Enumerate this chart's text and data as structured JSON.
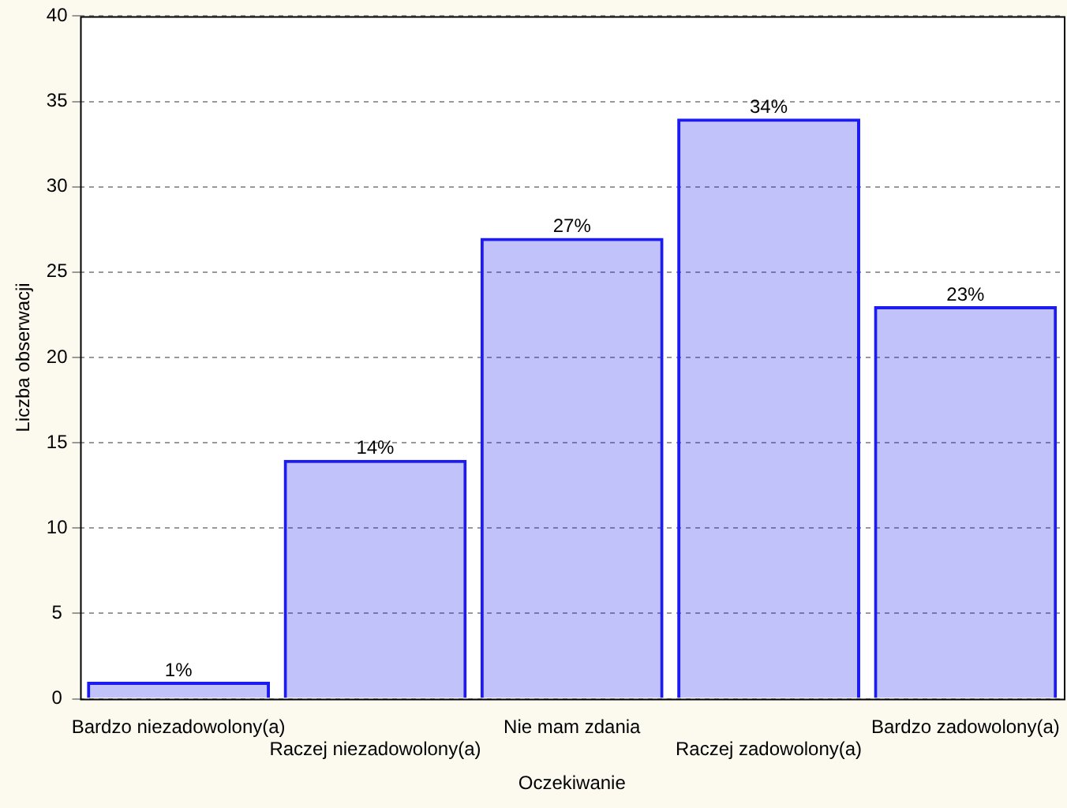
{
  "chart_data": {
    "type": "bar",
    "xlabel": "Oczekiwanie",
    "ylabel": "Liczba obserwacji",
    "categories": [
      "Bardzo niezadowolony(a)",
      "Raczej niezadowolony(a)",
      "Nie mam zdania",
      "Raczej zadowolony(a)",
      "Bardzo zadowolony(a)"
    ],
    "values": [
      1,
      14,
      27,
      34,
      23
    ],
    "value_labels": [
      "1%",
      "14%",
      "27%",
      "34%",
      "23%"
    ],
    "color": "#1c1cf0",
    "ylim": [
      0,
      40
    ],
    "yticks": [
      0,
      5,
      10,
      15,
      20,
      25,
      30,
      35,
      40
    ],
    "grid": "y",
    "legend": false
  }
}
